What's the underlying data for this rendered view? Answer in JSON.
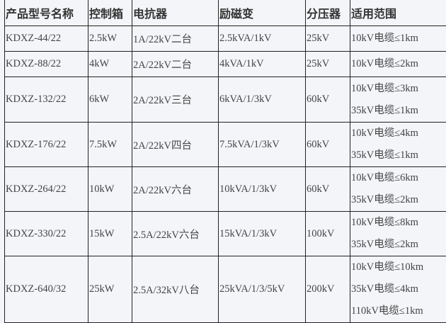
{
  "headers": [
    "产品型号名称",
    "控制箱",
    "电抗器",
    "励磁变",
    "分压器",
    "适用范围"
  ],
  "rows": [
    {
      "model": "KDXZ-44/22",
      "control": "2.5kW",
      "reactor": "1A/22kV二台",
      "excitation": "2.5kVA/1kV",
      "divider": "25kV",
      "scope": [
        "10kV电缆≤1km"
      ]
    },
    {
      "model": "KDXZ-88/22",
      "control": "4kW",
      "reactor": "2A/22kV二台",
      "excitation": "4kVA/1kV",
      "divider": "25kV",
      "scope": [
        "10kV电缆≤2km"
      ]
    },
    {
      "model": "KDXZ-132/22",
      "control": "6kW",
      "reactor": "2A/22kV三台",
      "excitation": "6kVA/1/3kV",
      "divider": "60kV",
      "scope": [
        "10kV电缆≤3km",
        "35kV电缆≤1km"
      ]
    },
    {
      "model": "KDXZ-176/22",
      "control": "7.5kW",
      "reactor": "2A/22kV四台",
      "excitation": "7.5kVA/1/3kV",
      "divider": "60kV",
      "scope": [
        "10kV电缆≤4km",
        "35kV电缆≤1km"
      ]
    },
    {
      "model": "KDXZ-264/22",
      "control": "10kW",
      "reactor": "2A/22kV六台",
      "excitation": "10kVA/1/3kV",
      "divider": "60kV",
      "scope": [
        "10kV电缆≤6km",
        "35kV电缆≤2km"
      ]
    },
    {
      "model": "KDXZ-330/22",
      "control": "15kW",
      "reactor": "2.5A/22kV六台",
      "excitation": "15kVA/1/3kV",
      "divider": "100kV",
      "scope": [
        "10kV电缆≤8km",
        "35kV电缆≤2km"
      ]
    },
    {
      "model": "KDXZ-640/32",
      "control": "25kW",
      "reactor": "2.5A/32kV八台",
      "excitation": "25kVA/1/3/5kV",
      "divider": "200kV",
      "scope": [
        "10kV电缆≤10km",
        "35kV电缆≤4km",
        "110kV电缆≤1km"
      ]
    }
  ]
}
